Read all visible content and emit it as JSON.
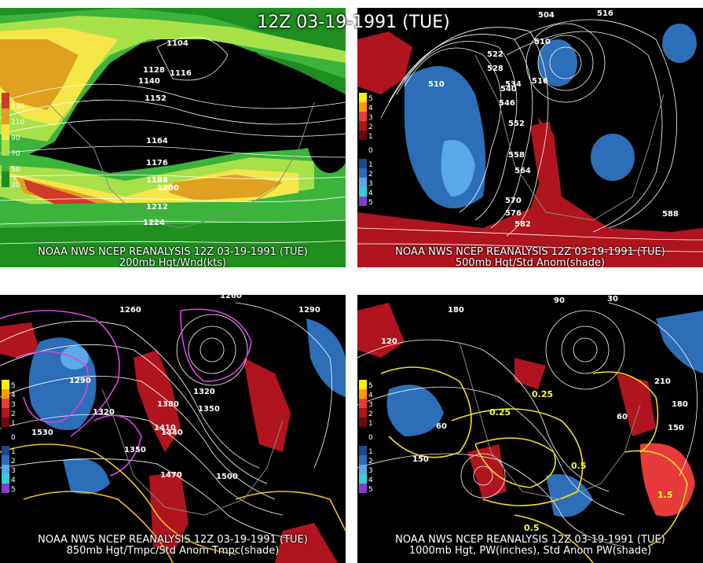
{
  "title": "12Z 03-19-1991 (TUE)",
  "panels": {
    "p200": {
      "caption1": "NOAA NWS NCEP REANALYSIS 12Z 03-19-1991 (TUE)",
      "caption2": "200mb Hgt/Wnd(kts)",
      "scale": [
        "130",
        "110",
        "90",
        "70",
        "50",
        "30"
      ],
      "labels": [
        "1104",
        "1128",
        "1116",
        "1140",
        "1152",
        "1164",
        "1176",
        "1188",
        "1200",
        "1212",
        "1224"
      ]
    },
    "p500": {
      "caption1": "NOAA NWS NCEP REANALYSIS 12Z 03-19-1991 (TUE)",
      "caption2": "500mb Hgt/Std Anom(shade)",
      "scale": [
        "5",
        "4",
        "3",
        "2",
        "1",
        "0",
        "1",
        "2",
        "3",
        "4",
        "5"
      ],
      "labels": [
        "504",
        "516",
        "510",
        "522",
        "528",
        "534",
        "540",
        "546",
        "552",
        "558",
        "564",
        "570",
        "576",
        "582",
        "588",
        "516",
        "510"
      ]
    },
    "p850": {
      "caption1": "NOAA NWS NCEP REANALYSIS 12Z 03-19-1991 (TUE)",
      "caption2": "850mb Hgt/Tmpc/Std Anom Tmpc(shade)",
      "scale": [
        "5",
        "4",
        "3",
        "2",
        "1",
        "0",
        "1",
        "2",
        "3",
        "4",
        "5"
      ],
      "labels": [
        "1260",
        "1290",
        "1320",
        "1350",
        "1380",
        "1410",
        "1440",
        "1470",
        "1500",
        "1530",
        "1350",
        "1260",
        "1290",
        "1320"
      ]
    },
    "p1000": {
      "caption1": "NOAA NWS NCEP REANALYSIS 12Z 03-19-1991 (TUE)",
      "caption2": "1000mb Hgt, PW(inches), Std Anom PW(shade)",
      "scale": [
        "5",
        "4",
        "3",
        "2",
        "1",
        "0",
        "1",
        "2",
        "3",
        "4",
        "5"
      ],
      "labels": [
        "120",
        "180",
        "90",
        "60",
        "150",
        "210",
        "0.25",
        "0.5",
        "1.5",
        "0.25",
        "0.5",
        "30",
        "60",
        "150",
        "180"
      ]
    }
  },
  "colors": {
    "background": "#000000",
    "jet_green_dark": "#1f8f1f",
    "jet_green": "#3cb43c",
    "jet_lime": "#a8e04a",
    "jet_yellow": "#f5e64a",
    "jet_orange": "#e0a020",
    "jet_red": "#d23a2a",
    "anom_red": "#b0141e",
    "anom_blue": "#2c6eb8",
    "anom_lightblue": "#5aa8e8",
    "temp_magenta": "#e040e0",
    "pw_yellow": "#f0e020",
    "contour": "#ffffff"
  }
}
